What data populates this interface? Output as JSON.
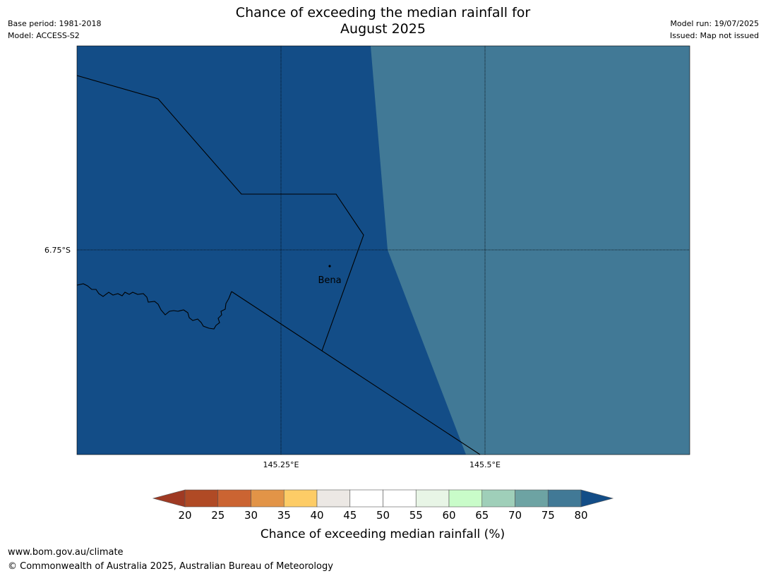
{
  "header": {
    "title_line1": "Chance of exceeding the median rainfall for",
    "title_line2": "August 2025",
    "base_period": "Base period: 1981-2018",
    "model": "Model: ACCESS-S2",
    "model_run": "Model run: 19/07/2025",
    "issued": "Issued: Map not issued"
  },
  "map": {
    "place_name": "Bena",
    "lat_labels": [
      "6.75°S"
    ],
    "lon_labels": [
      "145.25°E",
      "145.5°E"
    ],
    "class_colors": {
      "above_80": "#134d87",
      "75_80": "#417996"
    }
  },
  "legend": {
    "ticks": [
      "20",
      "25",
      "30",
      "35",
      "40",
      "45",
      "50",
      "55",
      "60",
      "65",
      "70",
      "75",
      "80"
    ],
    "colors": [
      "#9f3a23",
      "#b04a25",
      "#cb6432",
      "#e29447",
      "#fdcc66",
      "#ece8e4",
      "#ffffff",
      "#ffffff",
      "#e8f5e6",
      "#c9fcc9",
      "#9fcfb9",
      "#6da3a3",
      "#417996",
      "#134d87"
    ],
    "label": "Chance of exceeding median rainfall (%)"
  },
  "footer": {
    "url": "www.bom.gov.au/climate",
    "copyright": "© Commonwealth of Australia 2025, Australian Bureau of Meteorology"
  }
}
